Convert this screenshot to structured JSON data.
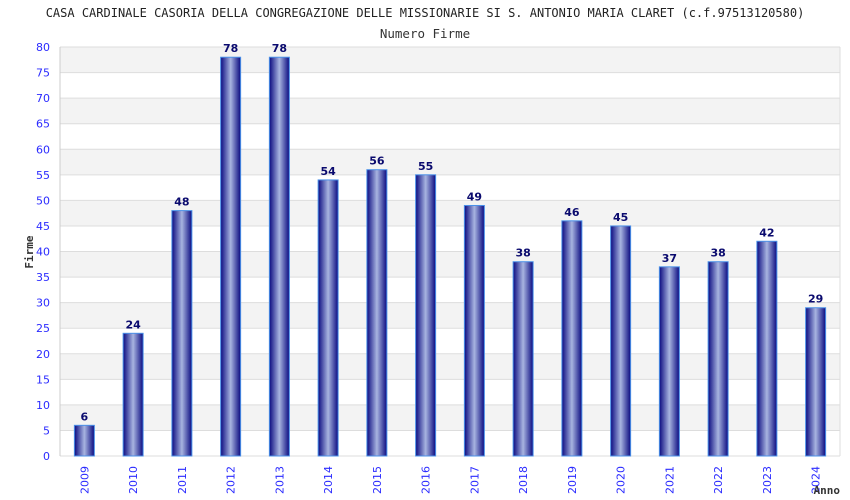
{
  "chart_data": {
    "type": "bar",
    "title": "CASA CARDINALE CASORIA DELLA CONGREGAZIONE DELLE MISSIONARIE SI S. ANTONIO MARIA CLARET (c.f.97513120580)",
    "subtitle": "Numero Firme",
    "xlabel": "Anno",
    "ylabel": "Firme",
    "ylim": [
      0,
      80
    ],
    "ytick_step": 5,
    "grid": true,
    "categories": [
      "2009",
      "2010",
      "2011",
      "2012",
      "2013",
      "2014",
      "2015",
      "2016",
      "2017",
      "2018",
      "2019",
      "2020",
      "2021",
      "2022",
      "2023",
      "2024"
    ],
    "values": [
      6,
      24,
      48,
      78,
      78,
      54,
      56,
      55,
      49,
      38,
      46,
      45,
      37,
      38,
      42,
      29
    ],
    "colors": {
      "bar_dark": "#0a0a80",
      "bar_light": "#a8b4e0",
      "bar_border": "#4a90e8",
      "tick": "#2b2bff",
      "label": "#0a0a6e",
      "band": "#f3f3f3",
      "grid": "#dddddd"
    }
  }
}
